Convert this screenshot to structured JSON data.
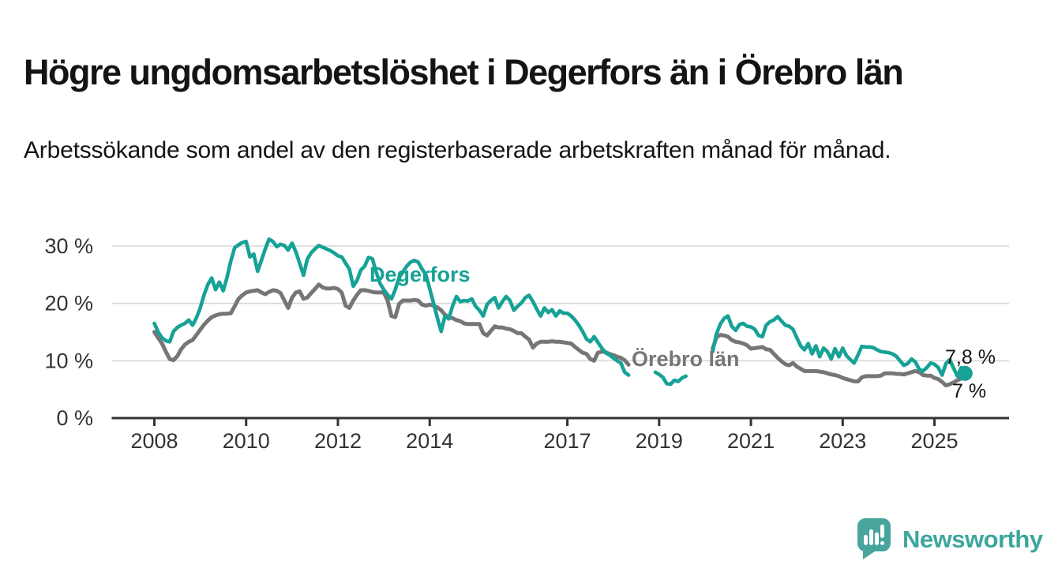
{
  "header": {
    "title": "Högre ungdomsarbetslöshet i Degerfors än i Örebro län",
    "subtitle": "Arbetssökande som andel av den registerbaserade arbetskraften månad för månad."
  },
  "chart_data": {
    "type": "line",
    "unit": "%",
    "x_start": "2008-01",
    "x_frequency": "monthly",
    "x_tick_years": [
      2008,
      2010,
      2012,
      2014,
      2017,
      2019,
      2021,
      2023,
      2025
    ],
    "y_ticks": [
      {
        "value": 0,
        "label": "0 %"
      },
      {
        "value": 10,
        "label": "10 %"
      },
      {
        "value": 20,
        "label": "20 %"
      },
      {
        "value": 30,
        "label": "30 %"
      }
    ],
    "ylim": [
      0,
      33
    ],
    "grid": "horizontal",
    "colors": {
      "degerfors": "#16a296",
      "orebro_lan": "#767676",
      "axis": "#333333",
      "gridline": "#d9d9d9"
    },
    "series": [
      {
        "name": "Degerfors",
        "label_text": "Degerfors",
        "end_value_label": "7,8 %",
        "color": "#16a296",
        "end_marker": "dot",
        "values": [
          16.5,
          15.0,
          14.0,
          13.5,
          13.3,
          15.1,
          15.8,
          16.2,
          16.5,
          17.1,
          16.2,
          17.5,
          19.2,
          21.5,
          23.3,
          24.4,
          22.4,
          23.7,
          22.2,
          24.5,
          27.4,
          29.7,
          30.2,
          30.6,
          30.8,
          28.1,
          28.6,
          25.6,
          27.5,
          29.5,
          31.2,
          30.8,
          29.9,
          30.3,
          30.1,
          29.3,
          30.5,
          29.0,
          27.0,
          24.9,
          27.7,
          28.8,
          29.5,
          30.1,
          29.8,
          29.5,
          29.2,
          28.8,
          28.3,
          28.1,
          27.0,
          26.0,
          23.0,
          24.0,
          25.8,
          26.5,
          28.0,
          27.8,
          25.5,
          23.5,
          22.4,
          21.5,
          20.8,
          22.4,
          24.5,
          25.5,
          26.5,
          27.2,
          27.5,
          27.2,
          26.0,
          25.0,
          22.6,
          20.0,
          17.5,
          15.1,
          17.8,
          17.3,
          19.6,
          21.2,
          20.3,
          20.5,
          20.4,
          20.8,
          19.5,
          18.8,
          17.8,
          19.8,
          20.5,
          21.0,
          19.2,
          20.3,
          21.2,
          20.5,
          18.8,
          19.5,
          20.1,
          21.0,
          21.4,
          20.3,
          19.0,
          17.8,
          19.2,
          18.4,
          18.9,
          17.8,
          18.7,
          18.3,
          18.3,
          17.8,
          17.1,
          16.2,
          15.1,
          13.8,
          13.3,
          14.2,
          13.2,
          12.2,
          11.4,
          11.0,
          10.5,
          10.0,
          9.6,
          8.0,
          7.5,
          null,
          null,
          null,
          null,
          null,
          null,
          8.0,
          7.6,
          7.1,
          6.0,
          5.9,
          6.6,
          6.4,
          7.0,
          7.3,
          null,
          null,
          null,
          null,
          null,
          null,
          11.6,
          14.7,
          16.4,
          17.4,
          17.8,
          16.0,
          15.3,
          16.3,
          16.5,
          16.0,
          15.9,
          15.5,
          14.4,
          14.2,
          16.2,
          16.8,
          17.1,
          17.7,
          16.9,
          16.2,
          16.0,
          15.5,
          14.0,
          12.6,
          11.9,
          13.0,
          11.2,
          12.6,
          10.7,
          12.2,
          11.6,
          10.3,
          12.1,
          10.7,
          12.2,
          10.9,
          10.2,
          9.6,
          11.0,
          12.5,
          12.4,
          12.4,
          12.3,
          11.9,
          11.6,
          11.5,
          11.4,
          11.2,
          10.8,
          10.0,
          9.2,
          9.5,
          10.3,
          9.8,
          8.5,
          8.2,
          8.8,
          9.6,
          9.4,
          8.8,
          7.5,
          9.5,
          10.2,
          8.7,
          7.3,
          8.8,
          7.8
        ]
      },
      {
        "name": "Örebro län",
        "label_text": "Örebro län",
        "end_value_label": "7 %",
        "color": "#767676",
        "end_marker": "none",
        "values": [
          15.0,
          14.0,
          13.0,
          11.6,
          10.3,
          10.1,
          10.8,
          12.0,
          12.8,
          13.3,
          13.6,
          14.5,
          15.4,
          16.3,
          17.0,
          17.6,
          17.9,
          18.1,
          18.2,
          18.2,
          18.3,
          19.5,
          20.8,
          21.4,
          21.9,
          22.1,
          22.2,
          22.3,
          21.9,
          21.6,
          22.0,
          22.3,
          22.2,
          21.8,
          20.5,
          19.2,
          21.0,
          21.9,
          22.1,
          20.8,
          21.0,
          21.8,
          22.5,
          23.3,
          22.8,
          22.6,
          22.6,
          22.7,
          22.5,
          21.9,
          19.6,
          19.2,
          20.5,
          21.5,
          22.3,
          22.3,
          22.2,
          22.0,
          21.9,
          21.9,
          21.9,
          20.5,
          17.8,
          17.6,
          19.9,
          20.5,
          20.5,
          20.5,
          20.6,
          20.5,
          19.8,
          19.6,
          19.8,
          19.6,
          19.3,
          18.8,
          18.0,
          17.6,
          17.4,
          17.1,
          16.9,
          16.5,
          16.4,
          16.4,
          16.4,
          16.4,
          14.8,
          14.4,
          15.2,
          16.0,
          15.8,
          15.8,
          15.6,
          15.5,
          15.2,
          14.8,
          14.8,
          14.2,
          13.7,
          12.3,
          13.0,
          13.3,
          13.3,
          13.3,
          13.4,
          13.3,
          13.3,
          13.2,
          13.1,
          13.0,
          12.4,
          11.9,
          11.4,
          11.2,
          10.3,
          10.0,
          11.4,
          11.6,
          11.5,
          11.2,
          11.0,
          10.7,
          10.5,
          10.1,
          9.3,
          null,
          null,
          null,
          null,
          null,
          null,
          null,
          null,
          null,
          null,
          null,
          null,
          null,
          null,
          null,
          null,
          null,
          null,
          null,
          null,
          null,
          12.1,
          14.1,
          14.5,
          14.4,
          14.2,
          13.6,
          13.3,
          13.2,
          13.0,
          12.7,
          12.1,
          12.2,
          12.3,
          12.4,
          12.0,
          11.9,
          11.2,
          10.5,
          9.9,
          9.4,
          9.2,
          9.6,
          9.0,
          8.6,
          8.2,
          8.2,
          8.2,
          8.2,
          8.1,
          8.0,
          7.8,
          7.6,
          7.5,
          7.3,
          7.0,
          6.8,
          6.6,
          6.4,
          6.4,
          7.1,
          7.3,
          7.3,
          7.3,
          7.3,
          7.4,
          7.8,
          7.8,
          7.8,
          7.7,
          7.7,
          7.6,
          7.8,
          8.0,
          8.2,
          8.0,
          7.5,
          7.4,
          7.4,
          7.0,
          6.8,
          6.3,
          5.7,
          5.9,
          6.2,
          6.6,
          6.9,
          7.0
        ]
      }
    ]
  },
  "footer": {
    "brand": "Newsworthy",
    "brand_color": "#3ca69e",
    "logo_color": "#48a59e"
  }
}
